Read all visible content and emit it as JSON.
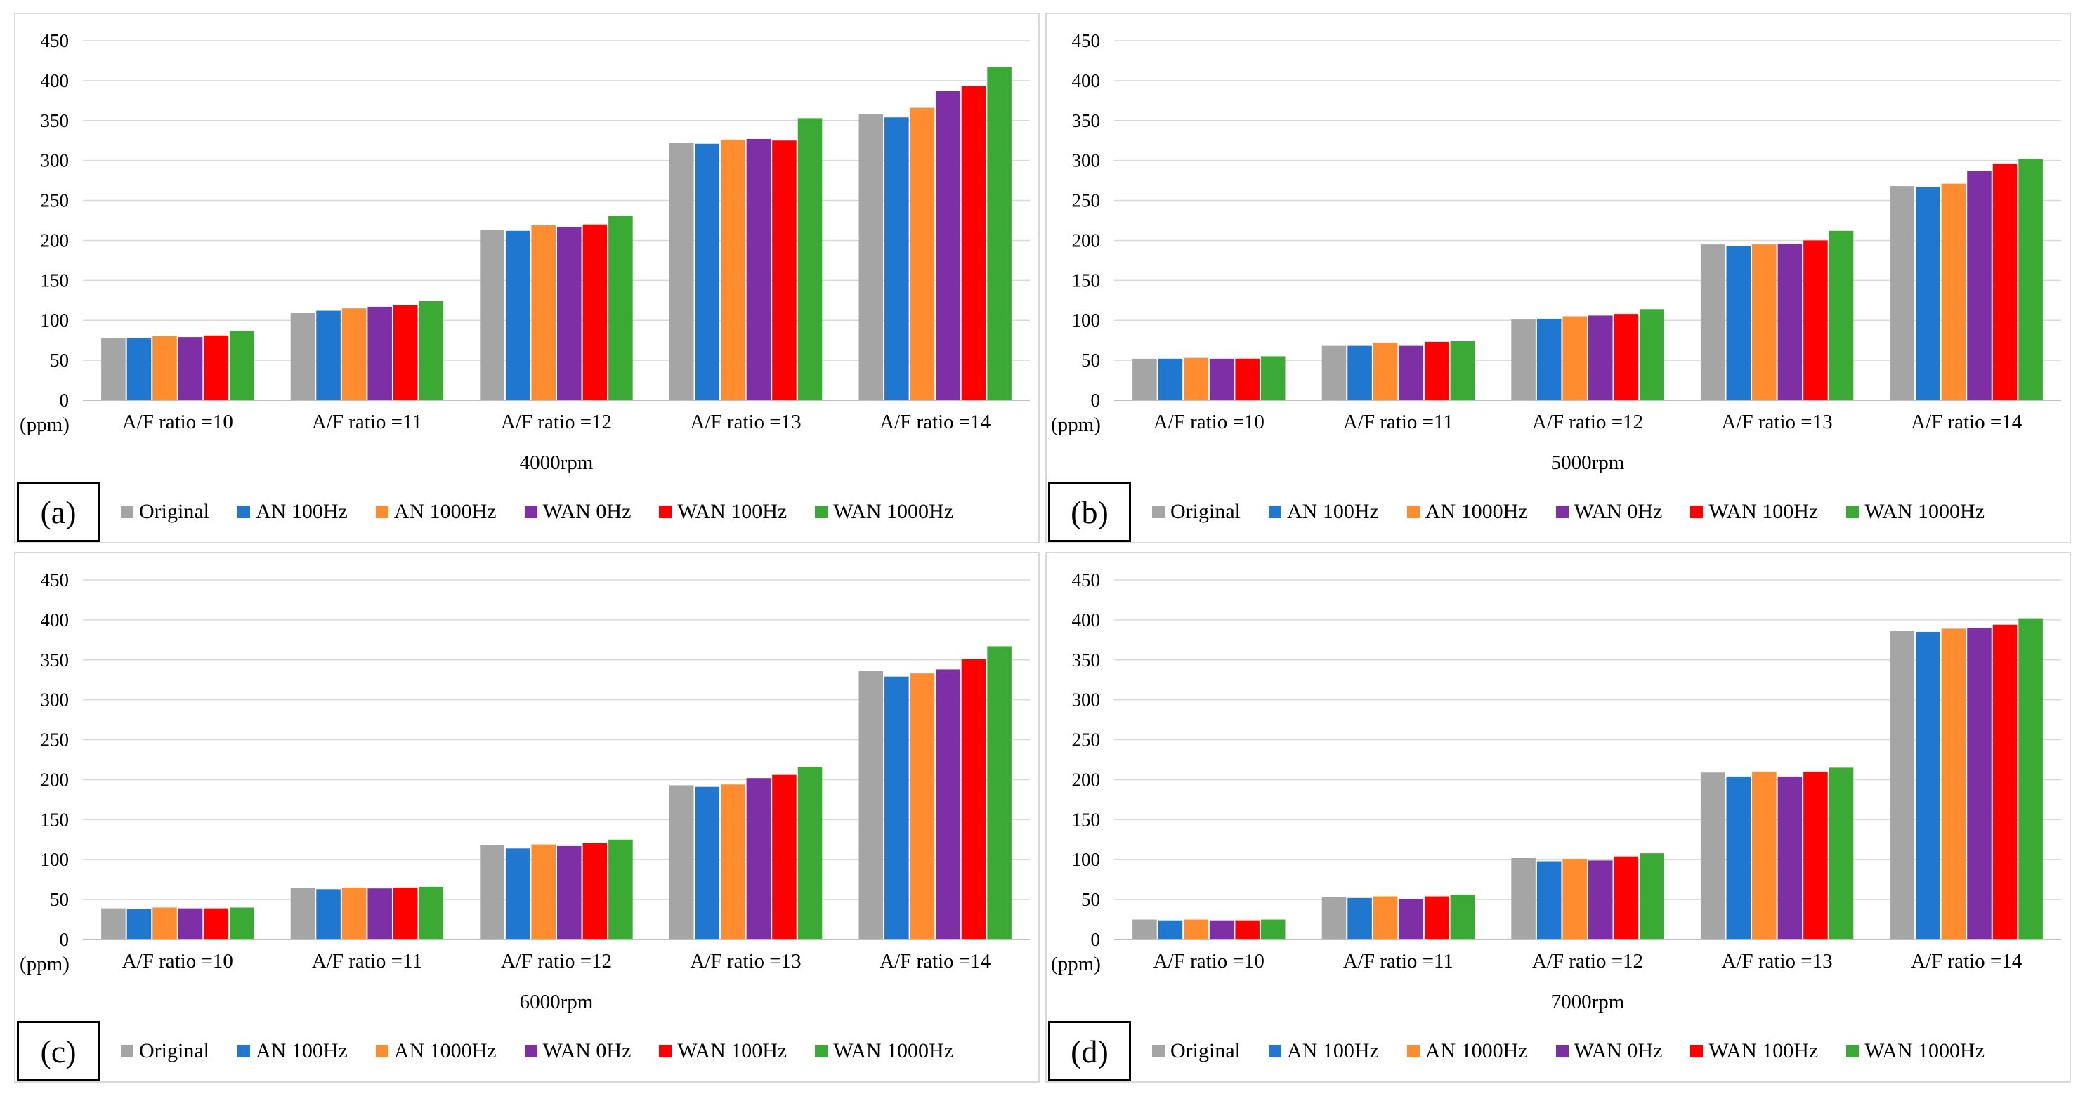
{
  "chart_data": [
    {
      "type": "bar",
      "panel_label": "(a)",
      "xlabel": "4000rpm",
      "ylabel": "(ppm)",
      "ylim": [
        0,
        450
      ],
      "yticks": [
        "0",
        "50",
        "100",
        "150",
        "200",
        "250",
        "300",
        "350",
        "400",
        "450"
      ],
      "categories": [
        "A/F ratio =10",
        "A/F ratio =11",
        "A/F ratio =12",
        "A/F ratio =13",
        "A/F ratio =14"
      ],
      "series": [
        {
          "name": "Original",
          "color": "#a5a5a5",
          "values": [
            78,
            109,
            213,
            322,
            358
          ]
        },
        {
          "name": "AN 100Hz",
          "color": "#1f77d0",
          "values": [
            78,
            112,
            212,
            321,
            354
          ]
        },
        {
          "name": "AN 1000Hz",
          "color": "#ff8c2e",
          "values": [
            80,
            115,
            219,
            326,
            366
          ]
        },
        {
          "name": "WAN 0Hz",
          "color": "#7e2fa5",
          "values": [
            79,
            117,
            217,
            327,
            387
          ]
        },
        {
          "name": "WAN 100Hz",
          "color": "#ff0000",
          "values": [
            81,
            119,
            220,
            325,
            393
          ]
        },
        {
          "name": "WAN 1000Hz",
          "color": "#3aaa35",
          "values": [
            87,
            124,
            231,
            353,
            417
          ]
        }
      ]
    },
    {
      "type": "bar",
      "panel_label": "(b)",
      "xlabel": "5000rpm",
      "ylabel": "(ppm)",
      "ylim": [
        0,
        450
      ],
      "yticks": [
        "0",
        "50",
        "100",
        "150",
        "200",
        "250",
        "300",
        "350",
        "400",
        "450"
      ],
      "categories": [
        "A/F ratio =10",
        "A/F ratio =11",
        "A/F ratio =12",
        "A/F ratio =13",
        "A/F ratio =14"
      ],
      "series": [
        {
          "name": "Original",
          "color": "#a5a5a5",
          "values": [
            52,
            68,
            101,
            195,
            268
          ]
        },
        {
          "name": "AN 100Hz",
          "color": "#1f77d0",
          "values": [
            52,
            68,
            102,
            193,
            267
          ]
        },
        {
          "name": "AN 1000Hz",
          "color": "#ff8c2e",
          "values": [
            53,
            72,
            105,
            195,
            271
          ]
        },
        {
          "name": "WAN 0Hz",
          "color": "#7e2fa5",
          "values": [
            52,
            68,
            106,
            196,
            287
          ]
        },
        {
          "name": "WAN 100Hz",
          "color": "#ff0000",
          "values": [
            52,
            73,
            108,
            200,
            296
          ]
        },
        {
          "name": "WAN 1000Hz",
          "color": "#3aaa35",
          "values": [
            55,
            74,
            114,
            212,
            302
          ]
        }
      ]
    },
    {
      "type": "bar",
      "panel_label": "(c)",
      "xlabel": "6000rpm",
      "ylabel": "(ppm)",
      "ylim": [
        0,
        450
      ],
      "yticks": [
        "0",
        "50",
        "100",
        "150",
        "200",
        "250",
        "300",
        "350",
        "400",
        "450"
      ],
      "categories": [
        "A/F ratio =10",
        "A/F ratio =11",
        "A/F ratio =12",
        "A/F ratio =13",
        "A/F ratio =14"
      ],
      "series": [
        {
          "name": "Original",
          "color": "#a5a5a5",
          "values": [
            39,
            65,
            118,
            193,
            336
          ]
        },
        {
          "name": "AN 100Hz",
          "color": "#1f77d0",
          "values": [
            38,
            63,
            114,
            191,
            329
          ]
        },
        {
          "name": "AN 1000Hz",
          "color": "#ff8c2e",
          "values": [
            40,
            65,
            119,
            194,
            333
          ]
        },
        {
          "name": "WAN 0Hz",
          "color": "#7e2fa5",
          "values": [
            39,
            64,
            117,
            202,
            338
          ]
        },
        {
          "name": "WAN 100Hz",
          "color": "#ff0000",
          "values": [
            39,
            65,
            121,
            206,
            351
          ]
        },
        {
          "name": "WAN 1000Hz",
          "color": "#3aaa35",
          "values": [
            40,
            66,
            125,
            216,
            367
          ]
        }
      ]
    },
    {
      "type": "bar",
      "panel_label": "(d)",
      "xlabel": "7000rpm",
      "ylabel": "(ppm)",
      "ylim": [
        0,
        450
      ],
      "yticks": [
        "0",
        "50",
        "100",
        "150",
        "200",
        "250",
        "300",
        "350",
        "400",
        "450"
      ],
      "categories": [
        "A/F ratio =10",
        "A/F ratio =11",
        "A/F ratio =12",
        "A/F ratio =13",
        "A/F ratio =14"
      ],
      "series": [
        {
          "name": "Original",
          "color": "#a5a5a5",
          "values": [
            25,
            53,
            102,
            209,
            386
          ]
        },
        {
          "name": "AN 100Hz",
          "color": "#1f77d0",
          "values": [
            24,
            52,
            98,
            204,
            385
          ]
        },
        {
          "name": "AN 1000Hz",
          "color": "#ff8c2e",
          "values": [
            25,
            54,
            101,
            210,
            389
          ]
        },
        {
          "name": "WAN 0Hz",
          "color": "#7e2fa5",
          "values": [
            24,
            51,
            99,
            204,
            390
          ]
        },
        {
          "name": "WAN 100Hz",
          "color": "#ff0000",
          "values": [
            24,
            54,
            104,
            210,
            394
          ]
        },
        {
          "name": "WAN 1000Hz",
          "color": "#3aaa35",
          "values": [
            25,
            56,
            108,
            215,
            402
          ]
        }
      ]
    }
  ]
}
